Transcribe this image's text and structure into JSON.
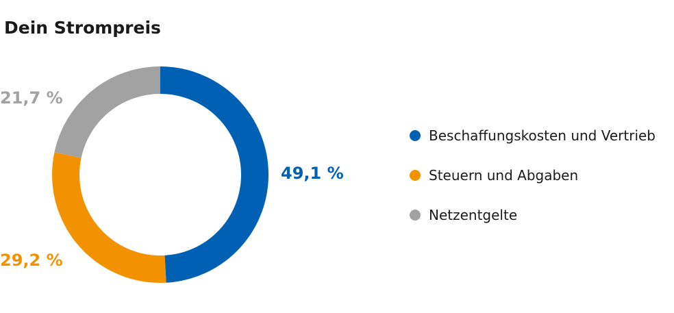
{
  "title": "Dein Strompreis",
  "chart_data": {
    "type": "pie",
    "variant": "donut",
    "title": "Dein Strompreis",
    "series": [
      {
        "name": "Beschaffungskosten und Vertrieb",
        "value": 49.1,
        "label": "49,1 %",
        "color": "#0060b4"
      },
      {
        "name": "Steuern und Abgaben",
        "value": 29.2,
        "label": "29,2 %",
        "color": "#f39200"
      },
      {
        "name": "Netzentgelte",
        "value": 21.7,
        "label": "21,7 %",
        "color": "#a2a2a2"
      }
    ],
    "legend_position": "right"
  }
}
